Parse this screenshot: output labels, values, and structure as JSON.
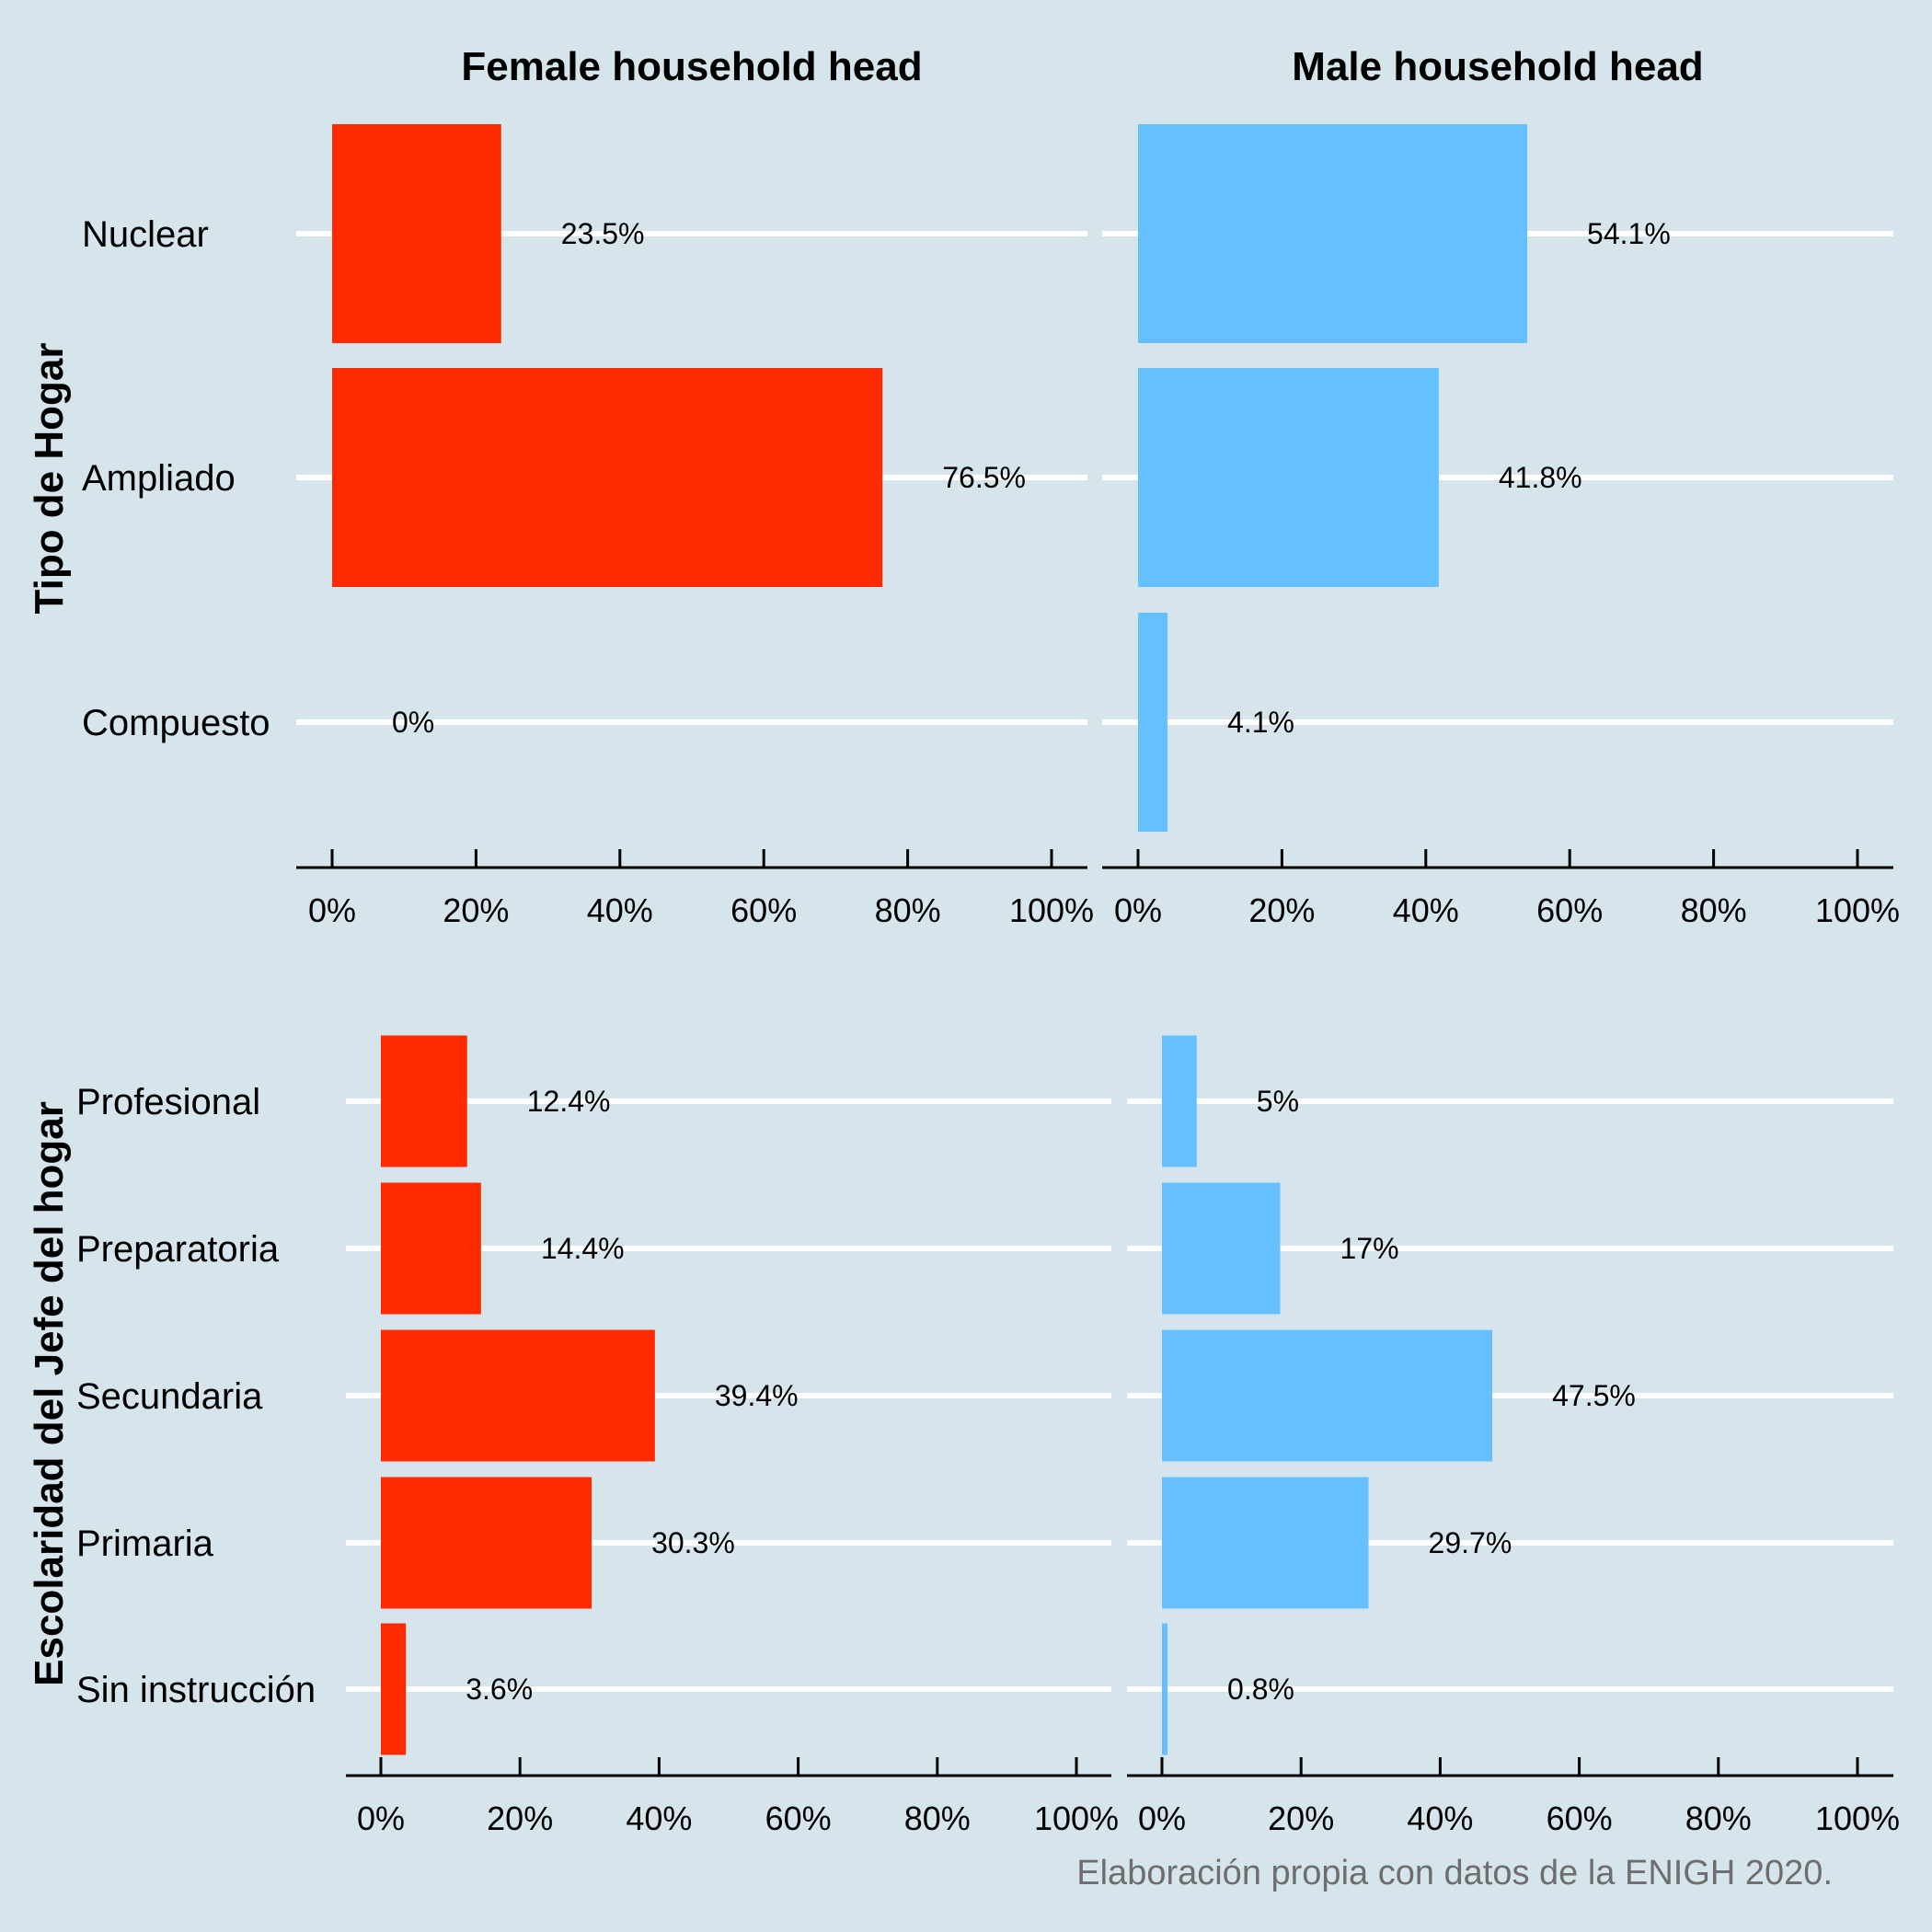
{
  "colors": {
    "background": "#d6e5ec",
    "female": "#ff2a00",
    "male": "#66bfff",
    "gridline": "#ffffff",
    "axis": "#000000",
    "caption": "#6e6e6e"
  },
  "caption": "Elaboración propia con datos de la ENIGH 2020.",
  "chart_data": [
    {
      "type": "bar",
      "orientation": "horizontal",
      "ylabel": "Tipo de Hogar",
      "categories": [
        "Nuclear",
        "Ampliado",
        "Compuesto"
      ],
      "xlim": [
        0,
        100
      ],
      "x_ticks": [
        "0%",
        "20%",
        "40%",
        "60%",
        "80%",
        "100%"
      ],
      "grid": "horizontal lines at categories",
      "facets": [
        {
          "title": "Female household head",
          "values": [
            23.5,
            76.5,
            0
          ],
          "labels": [
            "23.5%",
            "76.5%",
            "0%"
          ]
        },
        {
          "title": "Male household head",
          "values": [
            54.1,
            41.8,
            4.1
          ],
          "labels": [
            "54.1%",
            "41.8%",
            "4.1%"
          ]
        }
      ]
    },
    {
      "type": "bar",
      "orientation": "horizontal",
      "ylabel": "Escolaridad del Jefe del hogar",
      "categories": [
        "Profesional",
        "Preparatoria",
        "Secundaria",
        "Primaria",
        "Sin instrucción"
      ],
      "xlim": [
        0,
        100
      ],
      "x_ticks": [
        "0%",
        "20%",
        "40%",
        "60%",
        "80%",
        "100%"
      ],
      "grid": "horizontal lines at categories",
      "facets": [
        {
          "title": "",
          "values": [
            12.4,
            14.4,
            39.4,
            30.3,
            3.6
          ],
          "labels": [
            "12.4%",
            "14.4%",
            "39.4%",
            "30.3%",
            "3.6%"
          ]
        },
        {
          "title": "",
          "values": [
            5,
            17,
            47.5,
            29.7,
            0.8
          ],
          "labels": [
            "5%",
            "17%",
            "47.5%",
            "29.7%",
            "0.8%"
          ]
        }
      ]
    }
  ]
}
